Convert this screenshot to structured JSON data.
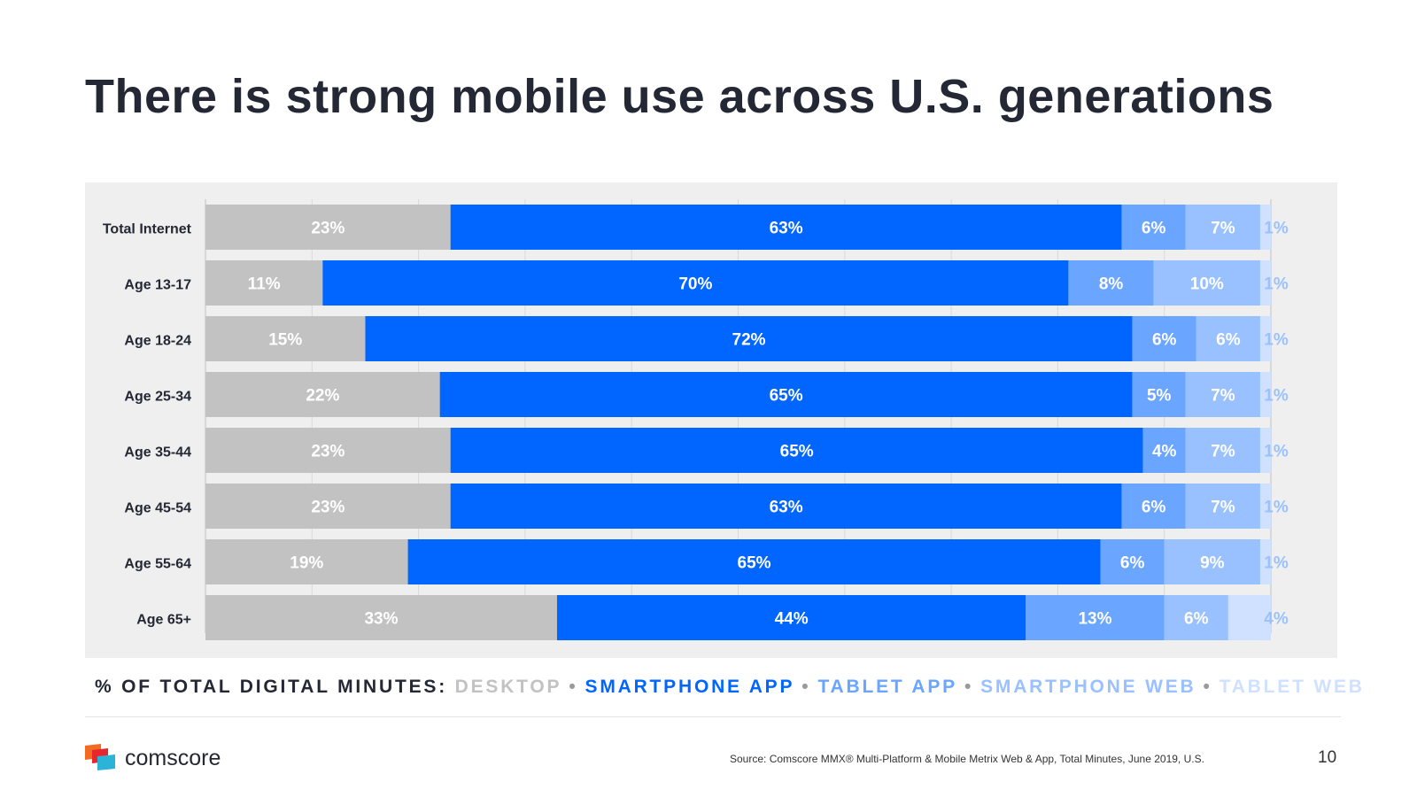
{
  "title": "There is strong mobile use across U.S. generations",
  "chart_data": {
    "type": "bar",
    "orientation": "horizontal",
    "stacked": true,
    "categories": [
      "Total Internet",
      "Age 13-17",
      "Age 18-24",
      "Age 25-34",
      "Age 35-44",
      "Age 45-54",
      "Age 55-64",
      "Age 65+"
    ],
    "series": [
      {
        "name": "DESKTOP",
        "color": "#c2c2c2",
        "values": [
          23,
          11,
          15,
          22,
          23,
          23,
          19,
          33
        ]
      },
      {
        "name": "SMARTPHONE APP",
        "color": "#0066ff",
        "values": [
          63,
          70,
          72,
          65,
          65,
          63,
          65,
          44
        ]
      },
      {
        "name": "TABLET APP",
        "color": "#6aa5ff",
        "values": [
          6,
          8,
          6,
          5,
          4,
          6,
          6,
          13
        ]
      },
      {
        "name": "SMARTPHONE WEB",
        "color": "#99c1ff",
        "values": [
          7,
          10,
          6,
          7,
          7,
          7,
          9,
          6
        ]
      },
      {
        "name": "TABLET WEB",
        "color": "#cfe1ff",
        "values": [
          1,
          1,
          1,
          1,
          1,
          1,
          1,
          4
        ]
      }
    ],
    "data_labels": [
      [
        "23%",
        "63%",
        "6%",
        "7%",
        "1%"
      ],
      [
        "11%",
        "70%",
        "8%",
        "10%",
        "1%"
      ],
      [
        "15%",
        "72%",
        "6%",
        "6%",
        "1%"
      ],
      [
        "22%",
        "65%",
        "5%",
        "7%",
        "1%"
      ],
      [
        "23%",
        "65%",
        "4%",
        "7%",
        "1%"
      ],
      [
        "23%",
        "63%",
        "6%",
        "7%",
        "1%"
      ],
      [
        "19%",
        "65%",
        "6%",
        "9%",
        "1%"
      ],
      [
        "33%",
        "44%",
        "13%",
        "6%",
        "4%"
      ]
    ],
    "xlim": [
      0,
      100
    ],
    "grid": true,
    "legend_placement": "bottom"
  },
  "legend": {
    "label": "% OF TOTAL DIGITAL MINUTES:",
    "separator": "•"
  },
  "footer": {
    "brand": "comscore",
    "source": "Source: Comscore MMX® Multi-Platform & Mobile Metrix Web & App, Total Minutes, June 2019, U.S.",
    "page_number": "10"
  },
  "colors": {
    "title": "#232834",
    "panel_background": "#efefef",
    "logo_orange": "#f26b21",
    "logo_red": "#e8262e",
    "logo_teal": "#2bb3d8"
  }
}
